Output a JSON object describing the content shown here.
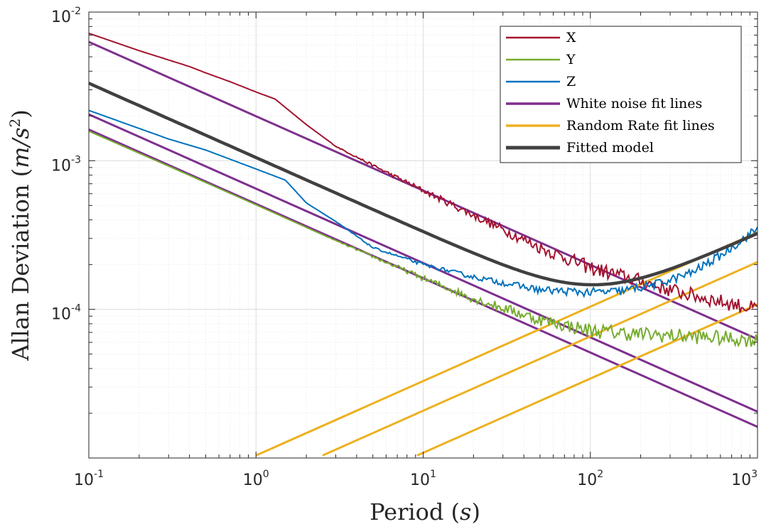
{
  "chart_data": {
    "type": "line",
    "xscale": "log",
    "yscale": "log",
    "xlim": [
      0.1,
      1000
    ],
    "ylim": [
      1e-05,
      0.01
    ],
    "grid": true,
    "minor_grid": true,
    "xlabel_text": "Period",
    "xlabel_unit": "s",
    "ylabel_text": "Allan Deviation",
    "ylabel_unit": "m/s",
    "ylabel_unit_exp": "2",
    "x_ticks": [
      {
        "base": "10",
        "exp": "-1",
        "value": 0.1
      },
      {
        "base": "10",
        "exp": "0",
        "value": 1
      },
      {
        "base": "10",
        "exp": "1",
        "value": 10
      },
      {
        "base": "10",
        "exp": "2",
        "value": 100
      },
      {
        "base": "10",
        "exp": "3",
        "value": 1000
      }
    ],
    "y_ticks": [
      {
        "base": "10",
        "exp": "-4",
        "value": 0.0001
      },
      {
        "base": "10",
        "exp": "-3",
        "value": 0.001
      },
      {
        "base": "10",
        "exp": "-2",
        "value": 0.01
      }
    ],
    "legend_position": "top-right",
    "series": [
      {
        "name": "X",
        "color": "#A2142F",
        "kind": "measured",
        "noise": 0.05,
        "points": [
          [
            0.1,
            0.0072
          ],
          [
            0.2,
            0.0055
          ],
          [
            0.4,
            0.0043
          ],
          [
            0.5,
            0.0039
          ],
          [
            0.7,
            0.0034
          ],
          [
            1,
            0.0029
          ],
          [
            1.3,
            0.0026
          ],
          [
            2,
            0.00175
          ],
          [
            3,
            0.00125
          ],
          [
            5,
            0.00093
          ],
          [
            10,
            0.00063
          ],
          [
            20,
            0.00043
          ],
          [
            50,
            0.00026
          ],
          [
            100,
            0.00019
          ],
          [
            200,
            0.000155
          ],
          [
            300,
            0.000135
          ],
          [
            500,
            0.000118
          ],
          [
            1000,
            0.0001
          ]
        ]
      },
      {
        "name": "Y",
        "color": "#77AC30",
        "kind": "measured",
        "noise": 0.05,
        "points": [
          [
            0.1,
            0.00158
          ],
          [
            0.3,
            0.00092
          ],
          [
            1,
            0.000505
          ],
          [
            3,
            0.00029
          ],
          [
            10,
            0.000162
          ],
          [
            20,
            0.000118
          ],
          [
            50,
            8.5e-05
          ],
          [
            100,
            7.2e-05
          ],
          [
            200,
            6.8e-05
          ],
          [
            500,
            6.5e-05
          ],
          [
            1000,
            6.2e-05
          ]
        ]
      },
      {
        "name": "Z",
        "color": "#0072BD",
        "kind": "measured",
        "noise": 0.03,
        "points": [
          [
            0.1,
            0.00218
          ],
          [
            0.3,
            0.0014
          ],
          [
            0.5,
            0.00118
          ],
          [
            1,
            0.00088
          ],
          [
            1.5,
            0.00074
          ],
          [
            2,
            0.00052
          ],
          [
            3,
            0.00039
          ],
          [
            5,
            0.00026
          ],
          [
            10,
            0.0002
          ],
          [
            20,
            0.000165
          ],
          [
            50,
            0.000135
          ],
          [
            100,
            0.00013
          ],
          [
            150,
            0.000132
          ],
          [
            250,
            0.000148
          ],
          [
            400,
            0.000175
          ],
          [
            600,
            0.00023
          ],
          [
            1000,
            0.00035
          ]
        ]
      },
      {
        "name": "White noise fit lines",
        "color": "#7E2F8E",
        "kind": "fit",
        "lines": [
          [
            [
              0.1,
              0.0063
            ],
            [
              1000,
              6.3e-05
            ]
          ],
          [
            [
              0.1,
              0.00205
            ],
            [
              1000,
              2.05e-05
            ]
          ],
          [
            [
              0.1,
              0.00162
            ],
            [
              1000,
              1.62e-05
            ]
          ]
        ]
      },
      {
        "name": "Random Rate fit lines",
        "color": "#EDB120",
        "kind": "fit",
        "lines": [
          [
            [
              1,
              1.04e-05
            ],
            [
              1000,
              0.00033
            ]
          ],
          [
            [
              2.5,
              1.04e-05
            ],
            [
              1000,
              0.000208
            ]
          ],
          [
            [
              9.2,
              1.04e-05
            ],
            [
              1000,
              0.000108
            ]
          ]
        ]
      },
      {
        "name": "Fitted model",
        "color": "#404040",
        "kind": "model",
        "components": [
          {
            "w": 0.00105,
            "s": -0.5
          },
          {
            "w": 1.02e-05,
            "s": 0.5
          }
        ]
      }
    ]
  }
}
